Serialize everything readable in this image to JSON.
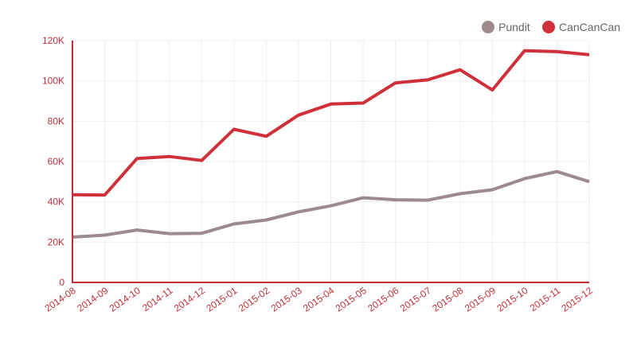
{
  "chart_data": {
    "type": "line",
    "title": "",
    "xlabel": "",
    "ylabel": "",
    "categories": [
      "2014-08",
      "2014-09",
      "2014-10",
      "2014-11",
      "2014-12",
      "2015-01",
      "2015-02",
      "2015-03",
      "2015-04",
      "2015-05",
      "2015-06",
      "2015-07",
      "2015-08",
      "2015-09",
      "2015-10",
      "2015-11",
      "2015-12"
    ],
    "y_ticks": [
      0,
      20000,
      40000,
      60000,
      80000,
      100000,
      120000
    ],
    "y_tick_labels": [
      "0",
      "20K",
      "40K",
      "60K",
      "80K",
      "100K",
      "120K"
    ],
    "ylim": [
      0,
      120000
    ],
    "grid": true,
    "legend_position": "top-right",
    "series": [
      {
        "name": "Pundit",
        "color": "#9c8a8c",
        "values": [
          22500,
          23500,
          26000,
          24200,
          24400,
          29000,
          31000,
          35000,
          38000,
          42000,
          41000,
          40800,
          44000,
          46000,
          51500,
          55000,
          50000
        ]
      },
      {
        "name": "CanCanCan",
        "color": "#d0303a",
        "values": [
          43500,
          43400,
          61500,
          62500,
          60500,
          76000,
          72500,
          83000,
          88500,
          89000,
          99000,
          100500,
          105500,
          95500,
          115000,
          114500,
          113000
        ]
      }
    ],
    "axis_color": "#c0303a",
    "grid_color": "#eeeeee"
  }
}
